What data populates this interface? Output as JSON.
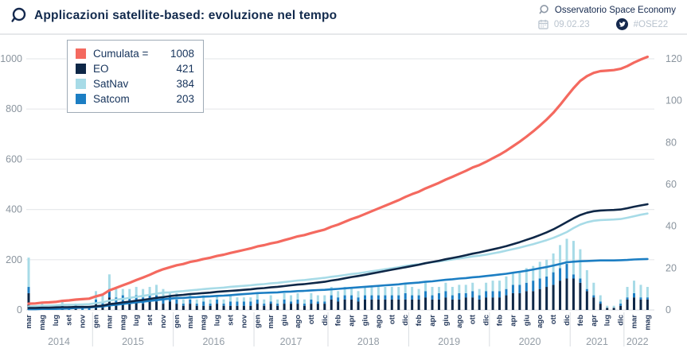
{
  "header": {
    "title": "Applicazioni satellite-based: evoluzione nel tempo",
    "org": "Osservatorio Space Economy",
    "date": "09.02.23",
    "hashtag": "#OSE22"
  },
  "legend": {
    "rows": [
      {
        "label": "Cumulata =",
        "value": "1008",
        "color": "#f4695f"
      },
      {
        "label": "EO",
        "value": "421",
        "color": "#0e2747"
      },
      {
        "label": "SatNav",
        "value": "384",
        "color": "#a7dbe7"
      },
      {
        "label": "Satcom",
        "value": "203",
        "color": "#1c7ec3"
      }
    ]
  },
  "chart_data": {
    "type": "composed",
    "description": "Monthly new satellite-based applications as stacked bars (right axis) and cumulative totals as lines (left axis)",
    "left_axis": {
      "ticks": [
        0,
        200,
        400,
        600,
        800,
        1000
      ],
      "range": [
        0,
        1000
      ]
    },
    "right_axis": {
      "ticks": [
        0,
        20,
        40,
        60,
        80,
        100,
        120
      ],
      "range": [
        0,
        120
      ]
    },
    "series_meta": {
      "cumulata": {
        "name": "Cumulata",
        "color": "#f4695f",
        "total": 1008
      },
      "eo": {
        "name": "EO",
        "color": "#0e2747",
        "total": 421
      },
      "nav": {
        "name": "SatNav",
        "color": "#a7dbe7",
        "total": 384
      },
      "com": {
        "name": "Satcom",
        "color": "#1c7ec3",
        "total": 203
      }
    },
    "years": [
      {
        "year": "2014",
        "months": [
          {
            "m": "mar",
            "v": [
              8,
              14,
              3
            ]
          },
          {
            "m": "apr",
            "v": [
              0,
              1,
              0
            ]
          },
          {
            "m": "mag",
            "v": [
              1,
              1,
              1
            ]
          },
          {
            "m": "giu",
            "v": [
              0,
              1,
              0
            ]
          },
          {
            "m": "lug",
            "v": [
              1,
              1,
              0
            ]
          },
          {
            "m": "ago",
            "v": [
              1,
              2,
              1
            ]
          },
          {
            "m": "set",
            "v": [
              0,
              1,
              1
            ]
          },
          {
            "m": "ott",
            "v": [
              1,
              0,
              2
            ]
          },
          {
            "m": "nov",
            "v": [
              0,
              1,
              1
            ]
          },
          {
            "m": "dic",
            "v": [
              0,
              1,
              1
            ]
          }
        ]
      },
      {
        "year": "2015",
        "months": [
          {
            "m": "gen",
            "v": [
              3,
              4,
              2
            ]
          },
          {
            "m": "feb",
            "v": [
              2,
              3,
              2
            ]
          },
          {
            "m": "mar",
            "v": [
              6,
              7,
              4
            ]
          },
          {
            "m": "apr",
            "v": [
              3,
              4,
              3
            ]
          },
          {
            "m": "mag",
            "v": [
              4,
              3,
              3
            ]
          },
          {
            "m": "giu",
            "v": [
              3,
              4,
              3
            ]
          },
          {
            "m": "lug",
            "v": [
              4,
              4,
              3
            ]
          },
          {
            "m": "ago",
            "v": [
              3,
              4,
              3
            ]
          },
          {
            "m": "set",
            "v": [
              4,
              4,
              3
            ]
          },
          {
            "m": "ott",
            "v": [
              4,
              5,
              3
            ]
          },
          {
            "m": "nov",
            "v": [
              3,
              4,
              3
            ]
          },
          {
            "m": "dic",
            "v": [
              4,
              1,
              3
            ]
          }
        ]
      },
      {
        "year": "2016",
        "months": [
          {
            "m": "gen",
            "v": [
              3,
              3,
              2
            ]
          },
          {
            "m": "feb",
            "v": [
              2,
              2,
              1
            ]
          },
          {
            "m": "mar",
            "v": [
              3,
              3,
              2
            ]
          },
          {
            "m": "apr",
            "v": [
              2,
              2,
              1
            ]
          },
          {
            "m": "mag",
            "v": [
              2,
              3,
              2
            ]
          },
          {
            "m": "giu",
            "v": [
              2,
              2,
              1
            ]
          },
          {
            "m": "lug",
            "v": [
              3,
              2,
              2
            ]
          },
          {
            "m": "ago",
            "v": [
              2,
              2,
              1
            ]
          },
          {
            "m": "set",
            "v": [
              2,
              3,
              2
            ]
          },
          {
            "m": "ott",
            "v": [
              2,
              2,
              2
            ]
          },
          {
            "m": "nov",
            "v": [
              2,
              2,
              2
            ]
          },
          {
            "m": "dic",
            "v": [
              2,
              2,
              2
            ]
          }
        ]
      },
      {
        "year": "2017",
        "months": [
          {
            "m": "gen",
            "v": [
              3,
              3,
              2
            ]
          },
          {
            "m": "feb",
            "v": [
              2,
              2,
              1
            ]
          },
          {
            "m": "mar",
            "v": [
              3,
              3,
              1
            ]
          },
          {
            "m": "apr",
            "v": [
              2,
              2,
              1
            ]
          },
          {
            "m": "giu",
            "v": [
              3,
              3,
              2
            ]
          },
          {
            "m": "lug",
            "v": [
              3,
              3,
              1
            ]
          },
          {
            "m": "ago",
            "v": [
              3,
              3,
              2
            ]
          },
          {
            "m": "set",
            "v": [
              2,
              2,
              1
            ]
          },
          {
            "m": "ott",
            "v": [
              3,
              3,
              2
            ]
          },
          {
            "m": "nov",
            "v": [
              3,
              3,
              1
            ]
          },
          {
            "m": "dic",
            "v": [
              3,
              3,
              1
            ]
          }
        ]
      },
      {
        "year": "2018",
        "months": [
          {
            "m": "gen",
            "v": [
              5,
              4,
              2
            ]
          },
          {
            "m": "feb",
            "v": [
              4,
              3,
              2
            ]
          },
          {
            "m": "mar",
            "v": [
              5,
              4,
              2
            ]
          },
          {
            "m": "apr",
            "v": [
              5,
              4,
              2
            ]
          },
          {
            "m": "mag",
            "v": [
              4,
              3,
              2
            ]
          },
          {
            "m": "giu",
            "v": [
              5,
              4,
              2
            ]
          },
          {
            "m": "lug",
            "v": [
              5,
              4,
              2
            ]
          },
          {
            "m": "ago",
            "v": [
              5,
              4,
              2
            ]
          },
          {
            "m": "set",
            "v": [
              5,
              4,
              2
            ]
          },
          {
            "m": "ott",
            "v": [
              5,
              4,
              2
            ]
          },
          {
            "m": "nov",
            "v": [
              5,
              4,
              2
            ]
          },
          {
            "m": "dic",
            "v": [
              5,
              5,
              3
            ]
          }
        ]
      },
      {
        "year": "2019",
        "months": [
          {
            "m": "gen",
            "v": [
              5,
              4,
              2
            ]
          },
          {
            "m": "feb",
            "v": [
              5,
              3,
              2
            ]
          },
          {
            "m": "mar",
            "v": [
              6,
              4,
              3
            ]
          },
          {
            "m": "apr",
            "v": [
              5,
              4,
              2
            ]
          },
          {
            "m": "mag",
            "v": [
              5,
              3,
              3
            ]
          },
          {
            "m": "giu",
            "v": [
              6,
              4,
              3
            ]
          },
          {
            "m": "lug",
            "v": [
              5,
              4,
              2
            ]
          },
          {
            "m": "ago",
            "v": [
              5,
              4,
              3
            ]
          },
          {
            "m": "set",
            "v": [
              6,
              4,
              2
            ]
          },
          {
            "m": "ott",
            "v": [
              6,
              4,
              3
            ]
          },
          {
            "m": "nov",
            "v": [
              5,
              3,
              2
            ]
          },
          {
            "m": "dic",
            "v": [
              6,
              4,
              3
            ]
          }
        ]
      },
      {
        "year": "2020",
        "months": [
          {
            "m": "gen",
            "v": [
              6,
              5,
              3
            ]
          },
          {
            "m": "feb",
            "v": [
              6,
              5,
              3
            ]
          },
          {
            "m": "mar",
            "v": [
              7,
              6,
              3
            ]
          },
          {
            "m": "apr",
            "v": [
              8,
              6,
              4
            ]
          },
          {
            "m": "mag",
            "v": [
              8,
              6,
              4
            ]
          },
          {
            "m": "giu",
            "v": [
              9,
              7,
              4
            ]
          },
          {
            "m": "lug",
            "v": [
              9,
              7,
              5
            ]
          },
          {
            "m": "ago",
            "v": [
              10,
              8,
              5
            ]
          },
          {
            "m": "set",
            "v": [
              11,
              8,
              5
            ]
          },
          {
            "m": "ott",
            "v": [
              12,
              9,
              6
            ]
          },
          {
            "m": "nov",
            "v": [
              14,
              11,
              6
            ]
          },
          {
            "m": "dic",
            "v": [
              15,
              12,
              7
            ]
          }
        ]
      },
      {
        "year": "2021",
        "months": [
          {
            "m": "gen",
            "v": [
              15,
              16,
              2
            ]
          },
          {
            "m": "feb",
            "v": [
              13,
              14,
              2
            ]
          },
          {
            "m": "mar",
            "v": [
              9,
              9,
              1
            ]
          },
          {
            "m": "apr",
            "v": [
              6,
              6,
              1
            ]
          },
          {
            "m": "mag",
            "v": [
              3,
              3,
              1
            ]
          },
          {
            "m": "lug",
            "v": [
              1,
              1,
              0
            ]
          },
          {
            "m": "nov",
            "v": [
              1,
              1,
              0
            ]
          },
          {
            "m": "dic",
            "v": [
              2,
              2,
              1
            ]
          }
        ]
      },
      {
        "year": "2022",
        "months": [
          {
            "m": "feb",
            "v": [
              5,
              5,
              1
            ]
          },
          {
            "m": "mar",
            "v": [
              6,
              6,
              2
            ]
          },
          {
            "m": "apr",
            "v": [
              5,
              6,
              1
            ]
          },
          {
            "m": "mag",
            "v": [
              5,
              5,
              1
            ]
          }
        ]
      }
    ]
  }
}
